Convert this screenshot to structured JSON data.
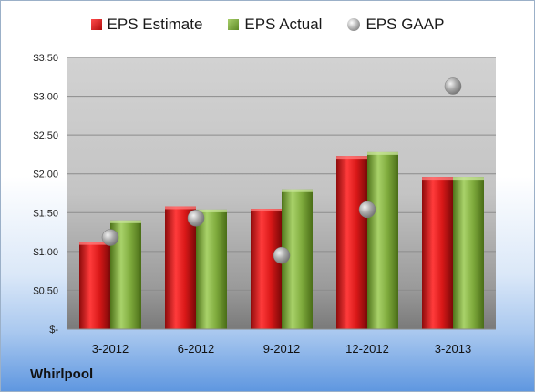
{
  "chart_data": {
    "type": "bar",
    "categories": [
      "3-2012",
      "6-2012",
      "9-2012",
      "12-2012",
      "3-2013"
    ],
    "series": [
      {
        "name": "EPS Estimate",
        "kind": "bar",
        "color": "#d11a1a",
        "values": [
          1.12,
          1.58,
          1.55,
          2.23,
          1.96
        ]
      },
      {
        "name": "EPS Actual",
        "kind": "bar",
        "color": "#7fab3d",
        "values": [
          1.4,
          1.54,
          1.8,
          2.28,
          1.96
        ]
      },
      {
        "name": "EPS GAAP",
        "kind": "scatter",
        "color": "#a8a8a8",
        "values": [
          1.18,
          1.43,
          0.95,
          1.54,
          3.13
        ]
      }
    ],
    "ylim": [
      0,
      3.5
    ],
    "yticks": [
      {
        "value": 0,
        "label": "$-"
      },
      {
        "value": 0.5,
        "label": "$0.50"
      },
      {
        "value": 1.0,
        "label": "$1.00"
      },
      {
        "value": 1.5,
        "label": "$1.50"
      },
      {
        "value": 2.0,
        "label": "$2.00"
      },
      {
        "value": 2.5,
        "label": "$2.50"
      },
      {
        "value": 3.0,
        "label": "$3.00"
      },
      {
        "value": 3.5,
        "label": "$3.50"
      }
    ],
    "grid": true,
    "legend_position": "top"
  },
  "company": "Whirlpool"
}
